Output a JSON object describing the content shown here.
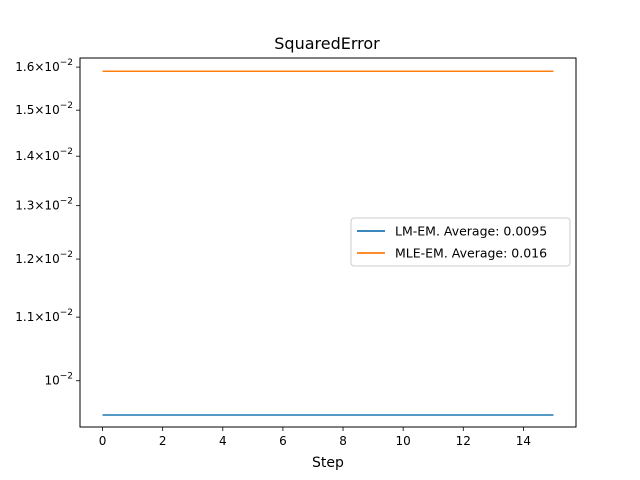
{
  "chart_data": {
    "type": "line",
    "title": "SquaredError",
    "xlabel": "Step",
    "ylabel": "",
    "yscale": "log",
    "xlim": [
      -0.75,
      15.75
    ],
    "ylim": [
      0.00933,
      0.01622
    ],
    "grid": false,
    "legend_position": "center-right",
    "x_ticks": [
      0,
      2,
      4,
      6,
      8,
      10,
      12,
      14
    ],
    "y_ticks": [
      {
        "value": 0.01,
        "mantissa": "",
        "exp": "−2"
      },
      {
        "value": 0.011,
        "mantissa": "1.1×10",
        "exp": "−2"
      },
      {
        "value": 0.012,
        "mantissa": "1.2×10",
        "exp": "−2"
      },
      {
        "value": 0.013,
        "mantissa": "1.3×10",
        "exp": "−2"
      },
      {
        "value": 0.014,
        "mantissa": "1.4×10",
        "exp": "−2"
      },
      {
        "value": 0.015,
        "mantissa": "1.5×10",
        "exp": "−2"
      },
      {
        "value": 0.016,
        "mantissa": "1.6×10",
        "exp": "−2"
      }
    ],
    "x": [
      0,
      1,
      2,
      3,
      4,
      5,
      6,
      7,
      8,
      9,
      10,
      11,
      12,
      13,
      14,
      15
    ],
    "series": [
      {
        "name": "LM-EM. Average: 0.0095",
        "color": "#1f77b4",
        "values": [
          0.0095,
          0.0095,
          0.0095,
          0.0095,
          0.0095,
          0.0095,
          0.0095,
          0.0095,
          0.0095,
          0.0095,
          0.0095,
          0.0095,
          0.0095,
          0.0095,
          0.0095,
          0.0095
        ]
      },
      {
        "name": "MLE-EM. Average: 0.016",
        "color": "#ff7f0e",
        "values": [
          0.0159,
          0.0159,
          0.0159,
          0.0159,
          0.0159,
          0.0159,
          0.0159,
          0.0159,
          0.0159,
          0.0159,
          0.0159,
          0.0159,
          0.0159,
          0.0159,
          0.0159,
          0.0159
        ]
      }
    ]
  }
}
